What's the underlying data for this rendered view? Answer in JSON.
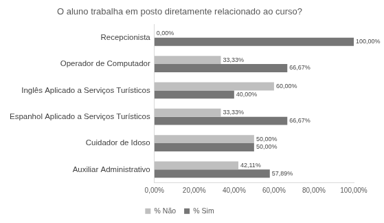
{
  "chart_data": {
    "type": "bar",
    "orientation": "horizontal",
    "title": "O aluno trabalha em posto diretamente relacionado ao curso?",
    "categories": [
      "Recepcionista",
      "Operador de Computador",
      "Inglês Aplicado a Serviços Turísticos",
      "Espanhol Aplicado a Serviços Turísticos",
      "Cuidador de Idoso",
      "Auxiliar Administrativo"
    ],
    "series": [
      {
        "name": "% Não",
        "color": "#bfbfbf",
        "values": [
          0,
          33.33,
          60,
          33.33,
          50,
          42.11
        ],
        "value_labels": [
          "0,00%",
          "33,33%",
          "60,00%",
          "33,33%",
          "50,00%",
          "42,11%"
        ]
      },
      {
        "name": "% Sim",
        "color": "#767676",
        "values": [
          100,
          66.67,
          40,
          66.67,
          50,
          57.89
        ],
        "value_labels": [
          "100,00%",
          "66,67%",
          "40,00%",
          "66,67%",
          "50,00%",
          "57,89%"
        ]
      }
    ],
    "xlim": [
      0,
      100
    ],
    "xticks": [
      {
        "value": 0,
        "label": "0,00%"
      },
      {
        "value": 20,
        "label": "20,00%"
      },
      {
        "value": 40,
        "label": "40,00%"
      },
      {
        "value": 60,
        "label": "60,00%"
      },
      {
        "value": 80,
        "label": "80,00%"
      },
      {
        "value": 100,
        "label": "100,00%"
      }
    ],
    "grid": false,
    "legend": "bottom",
    "data_labels": true
  }
}
